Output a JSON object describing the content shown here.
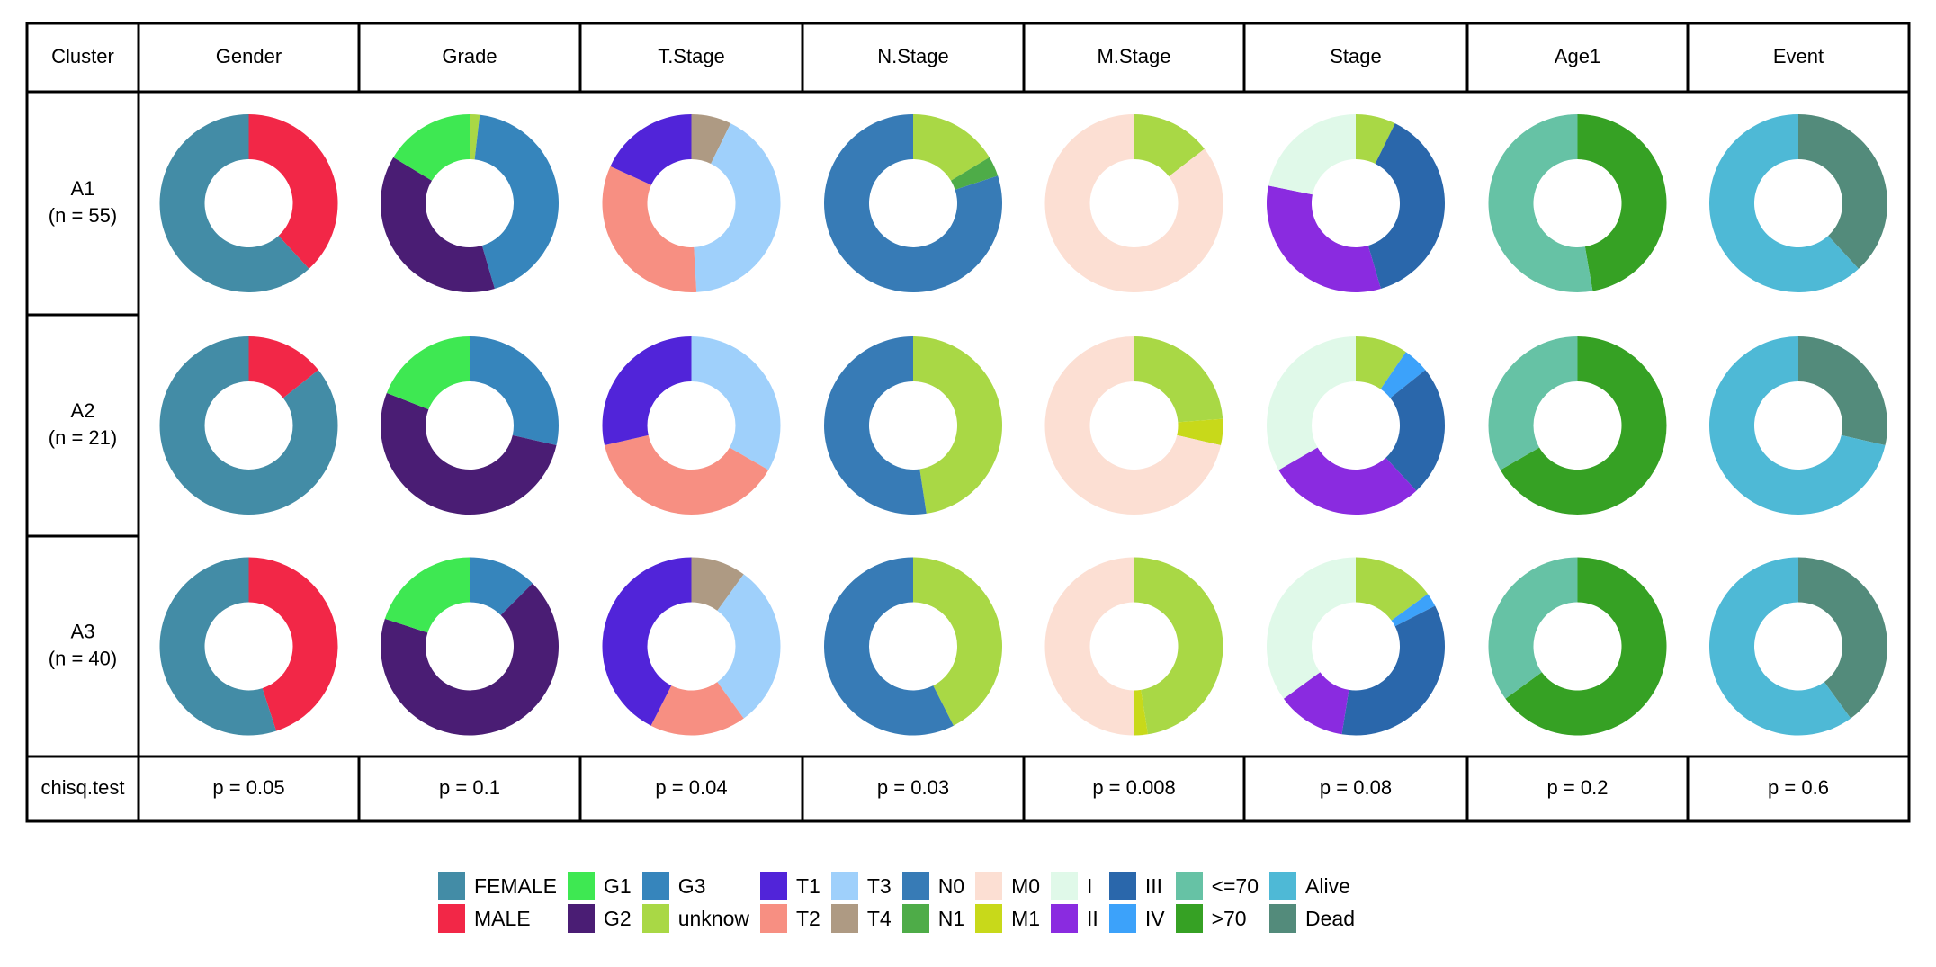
{
  "chart_data": {
    "type": "pie",
    "subtype": "donut-grid",
    "row_header_label": "Cluster",
    "columns": [
      "Gender",
      "Grade",
      "T.Stage",
      "N.Stage",
      "M.Stage",
      "Stage",
      "Age1",
      "Event"
    ],
    "rows": [
      {
        "label": "A1",
        "n_label": "(n = 55)"
      },
      {
        "label": "A2",
        "n_label": "(n = 21)"
      },
      {
        "label": "A3",
        "n_label": "(n = 40)"
      }
    ],
    "test_label": "chisq.test",
    "p_values": [
      "p = 0.05",
      "p = 0.1",
      "p = 0.04",
      "p = 0.03",
      "p = 0.008",
      "p = 0.08",
      "p = 0.2",
      "p = 0.6"
    ],
    "levels": {
      "Gender": [
        "FEMALE",
        "MALE"
      ],
      "Grade": [
        "G1",
        "G2",
        "G3",
        "unknow"
      ],
      "T.Stage": [
        "T1",
        "T2",
        "T3",
        "T4"
      ],
      "N.Stage": [
        "N0",
        "N1",
        "unknow"
      ],
      "M.Stage": [
        "M0",
        "M1",
        "unknow"
      ],
      "Stage": [
        "I",
        "II",
        "III",
        "IV",
        "unknow"
      ],
      "Age1": [
        "<=70",
        ">70"
      ],
      "Event": [
        "Alive",
        "Dead"
      ]
    },
    "counts": {
      "Gender": [
        [
          34,
          21
        ],
        [
          18,
          3
        ],
        [
          22,
          18
        ]
      ],
      "Grade": [
        [
          9,
          21,
          24,
          1
        ],
        [
          4,
          11,
          6,
          0
        ],
        [
          8,
          27,
          5,
          0
        ]
      ],
      "T.Stage": [
        [
          10,
          18,
          23,
          4
        ],
        [
          6,
          8,
          7,
          0
        ],
        [
          17,
          7,
          12,
          4
        ]
      ],
      "N.Stage": [
        [
          44,
          2,
          9
        ],
        [
          11,
          0,
          10
        ],
        [
          23,
          0,
          17
        ]
      ],
      "M.Stage": [
        [
          47,
          0,
          8
        ],
        [
          15,
          1,
          5
        ],
        [
          20,
          1,
          19
        ]
      ],
      "Stage": [
        [
          12,
          18,
          21,
          0,
          4
        ],
        [
          7,
          6,
          5,
          1,
          2
        ],
        [
          14,
          5,
          14,
          1,
          6
        ]
      ],
      "Age1": [
        [
          29,
          26
        ],
        [
          7,
          14
        ],
        [
          14,
          26
        ]
      ],
      "Event": [
        [
          34,
          21
        ],
        [
          15,
          6
        ],
        [
          24,
          16
        ]
      ]
    },
    "colors": {
      "FEMALE": "#438ca6",
      "MALE": "#f22747",
      "G1": "#3ee852",
      "G2": "#4a1d74",
      "G3": "#3685bc",
      "unknow": "#a9d845",
      "T1": "#5124d9",
      "T2": "#f78f82",
      "T3": "#9fd0fb",
      "T4": "#ae9a83",
      "N0": "#377bb6",
      "N1": "#4eac48",
      "M0": "#fcdfd3",
      "M1": "#c8d91a",
      "I": "#e0f9e9",
      "II": "#8a2be0",
      "III": "#2a67ab",
      "IV": "#3ca2fa",
      "<=70": "#66c2a5",
      ">70": "#36a124",
      "Alive": "#4eb9d6",
      "Dead": "#538b7b"
    },
    "legend": [
      [
        "FEMALE",
        "MALE"
      ],
      [
        "G1",
        "G2"
      ],
      [
        "G3",
        "unknow"
      ],
      [
        "T1",
        "T2"
      ],
      [
        "T3",
        "T4"
      ],
      [
        "N0",
        "N1"
      ],
      [
        "M0",
        "M1"
      ],
      [
        "I",
        "II"
      ],
      [
        "III",
        "IV"
      ],
      [
        "<=70",
        ">70"
      ],
      [
        "Alive",
        "Dead"
      ]
    ],
    "legend_placement": "bottom"
  }
}
